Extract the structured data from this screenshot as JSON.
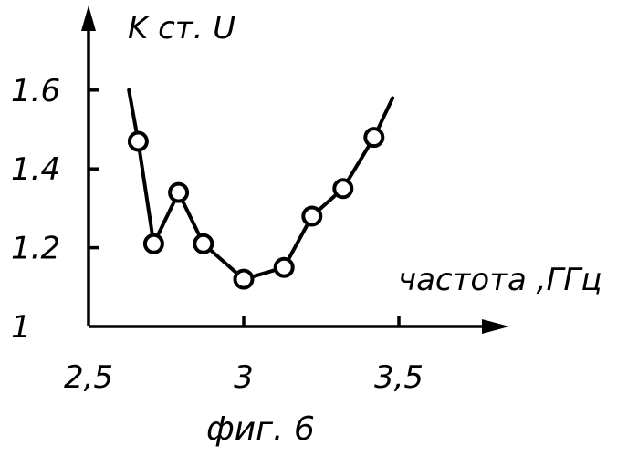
{
  "chart_data": {
    "type": "line",
    "ylabel": "K ст. U",
    "xlabel": "частота ,ГГц",
    "caption": "фиг. 6",
    "xlim": [
      2.5,
      3.8
    ],
    "ylim": [
      1.0,
      1.8
    ],
    "x_ticks": [
      {
        "value": 2.5,
        "label": "2,5"
      },
      {
        "value": 3.0,
        "label": "3"
      },
      {
        "value": 3.5,
        "label": "3,5"
      }
    ],
    "y_ticks": [
      {
        "value": 1.0,
        "label": "1"
      },
      {
        "value": 1.2,
        "label": "1.2"
      },
      {
        "value": 1.4,
        "label": "1.4"
      },
      {
        "value": 1.6,
        "label": "1.6"
      }
    ],
    "series": [
      {
        "x": [
          2.63,
          2.66,
          2.71,
          2.79,
          2.87,
          3.0,
          3.13,
          3.22,
          3.32,
          3.42,
          3.48
        ],
        "y": [
          1.6,
          1.47,
          1.21,
          1.34,
          1.21,
          1.12,
          1.15,
          1.28,
          1.35,
          1.48,
          1.58
        ],
        "markers": [
          false,
          true,
          true,
          true,
          true,
          true,
          true,
          true,
          true,
          true,
          false
        ]
      }
    ],
    "grid": false,
    "legend": "none"
  }
}
